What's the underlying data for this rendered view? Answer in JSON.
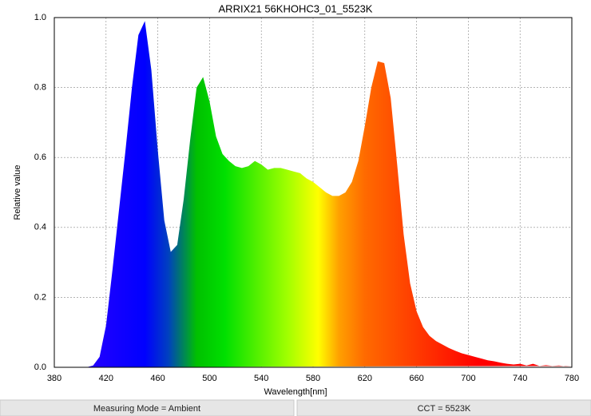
{
  "chart_data": {
    "type": "area",
    "title": "ARRIX21 56KHOHC3_01_5523K",
    "x_label": "Wavelength[nm]",
    "y_label": "Relative value",
    "x": [
      380,
      385,
      390,
      395,
      400,
      405,
      410,
      415,
      420,
      425,
      430,
      435,
      440,
      445,
      450,
      455,
      460,
      465,
      470,
      475,
      480,
      485,
      490,
      495,
      500,
      505,
      510,
      515,
      520,
      525,
      530,
      535,
      540,
      545,
      550,
      555,
      560,
      565,
      570,
      575,
      580,
      585,
      590,
      595,
      600,
      605,
      610,
      615,
      620,
      625,
      630,
      635,
      640,
      645,
      650,
      655,
      660,
      665,
      670,
      675,
      680,
      685,
      690,
      695,
      700,
      705,
      710,
      715,
      720,
      725,
      730,
      735,
      740,
      745,
      750,
      755,
      760,
      765,
      770,
      775,
      780
    ],
    "values": [
      0,
      0,
      0,
      0,
      0,
      0,
      0.005,
      0.03,
      0.12,
      0.28,
      0.45,
      0.62,
      0.8,
      0.95,
      0.99,
      0.85,
      0.62,
      0.42,
      0.33,
      0.35,
      0.48,
      0.65,
      0.8,
      0.83,
      0.76,
      0.66,
      0.61,
      0.59,
      0.575,
      0.57,
      0.575,
      0.59,
      0.58,
      0.565,
      0.57,
      0.57,
      0.565,
      0.56,
      0.555,
      0.54,
      0.53,
      0.515,
      0.5,
      0.49,
      0.49,
      0.5,
      0.53,
      0.59,
      0.69,
      0.8,
      0.875,
      0.87,
      0.77,
      0.58,
      0.38,
      0.24,
      0.16,
      0.115,
      0.09,
      0.075,
      0.065,
      0.055,
      0.047,
      0.04,
      0.035,
      0.03,
      0.025,
      0.02,
      0.017,
      0.013,
      0.01,
      0.008,
      0.01,
      0.005,
      0.01,
      0.004,
      0.006,
      0.004,
      0.005,
      0.003,
      0.004
    ],
    "xlim": [
      380,
      780
    ],
    "xticks": [
      380,
      420,
      460,
      500,
      540,
      580,
      620,
      660,
      700,
      740,
      780
    ],
    "ylim": [
      0,
      1
    ],
    "yticks": [
      {
        "value": 0,
        "label": "0.0"
      },
      0.2,
      0.4,
      0.6,
      0.8,
      {
        "value": 1,
        "label": "1.0"
      }
    ],
    "grid": true,
    "annotations": [
      "Measuring Mode = Ambient",
      "CCT = 5523K"
    ]
  }
}
